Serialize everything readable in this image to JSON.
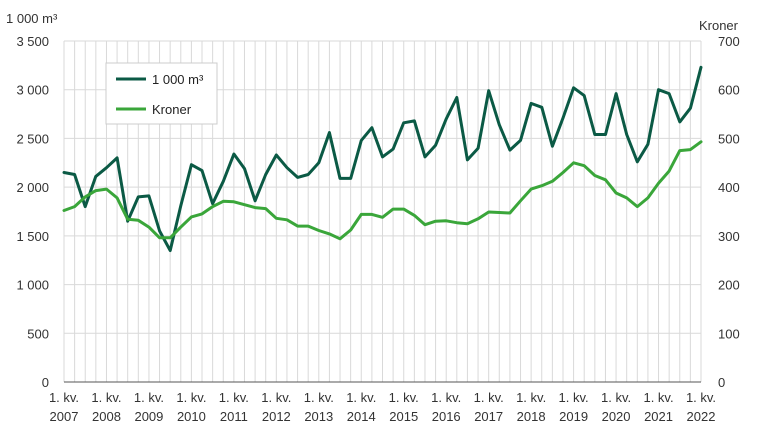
{
  "chart_data": {
    "type": "line",
    "left_axis_label": "1 000 m³",
    "right_axis_label": "Kroner",
    "left_ylim": [
      0,
      3500
    ],
    "right_ylim": [
      0,
      700
    ],
    "left_ticks": [
      "0",
      "500",
      "1 000",
      "1 500",
      "2 000",
      "2 500",
      "3 000",
      "3 500"
    ],
    "right_ticks": [
      "0",
      "100",
      "200",
      "300",
      "400",
      "500",
      "600",
      "700"
    ],
    "x_tick_labels": [
      {
        "line1": "1. kv.",
        "line2": "2007"
      },
      {
        "line1": "1. kv.",
        "line2": "2008"
      },
      {
        "line1": "1. kv.",
        "line2": "2009"
      },
      {
        "line1": "1. kv.",
        "line2": "2010"
      },
      {
        "line1": "1. kv.",
        "line2": "2011"
      },
      {
        "line1": "1. kv.",
        "line2": "2012"
      },
      {
        "line1": "1. kv.",
        "line2": "2013"
      },
      {
        "line1": "1. kv.",
        "line2": "2014"
      },
      {
        "line1": "1. kv.",
        "line2": "2015"
      },
      {
        "line1": "1. kv.",
        "line2": "2016"
      },
      {
        "line1": "1. kv.",
        "line2": "2017"
      },
      {
        "line1": "1. kv.",
        "line2": "2018"
      },
      {
        "line1": "1. kv.",
        "line2": "2019"
      },
      {
        "line1": "1. kv.",
        "line2": "2020"
      },
      {
        "line1": "1. kv.",
        "line2": "2021"
      },
      {
        "line1": "1. kv.",
        "line2": "2022"
      }
    ],
    "quarters_count": 61,
    "grid": "vertical per quarter, horizontal per tick",
    "legend_position": "top-left",
    "series": [
      {
        "name": "1 000 m³",
        "axis": "left",
        "color": "#0b5a45",
        "values": [
          2150,
          2130,
          1800,
          2110,
          2200,
          2300,
          1650,
          1900,
          1910,
          1550,
          1350,
          1810,
          2230,
          2170,
          1830,
          2060,
          2340,
          2190,
          1860,
          2130,
          2330,
          2200,
          2100,
          2130,
          2250,
          2560,
          2090,
          2090,
          2480,
          2610,
          2310,
          2390,
          2660,
          2680,
          2310,
          2430,
          2700,
          2920,
          2280,
          2400,
          2990,
          2640,
          2380,
          2480,
          2860,
          2820,
          2420,
          2710,
          3020,
          2940,
          2540,
          2540,
          2960,
          2540,
          2260,
          2440,
          3000,
          2960,
          2670,
          2810,
          3230
        ]
      },
      {
        "name": "Kroner",
        "axis": "right",
        "color": "#3aa63a",
        "values": [
          352,
          360,
          380,
          393,
          396,
          378,
          334,
          332,
          318,
          296,
          296,
          318,
          339,
          345,
          360,
          371,
          370,
          364,
          358,
          356,
          336,
          333,
          320,
          320,
          311,
          304,
          294,
          312,
          344,
          344,
          338,
          355,
          355,
          342,
          323,
          330,
          331,
          327,
          325,
          335,
          349,
          348,
          347,
          372,
          396,
          403,
          412,
          430,
          450,
          444,
          424,
          415,
          388,
          378,
          360,
          378,
          408,
          433,
          475,
          477,
          493
        ]
      }
    ]
  }
}
